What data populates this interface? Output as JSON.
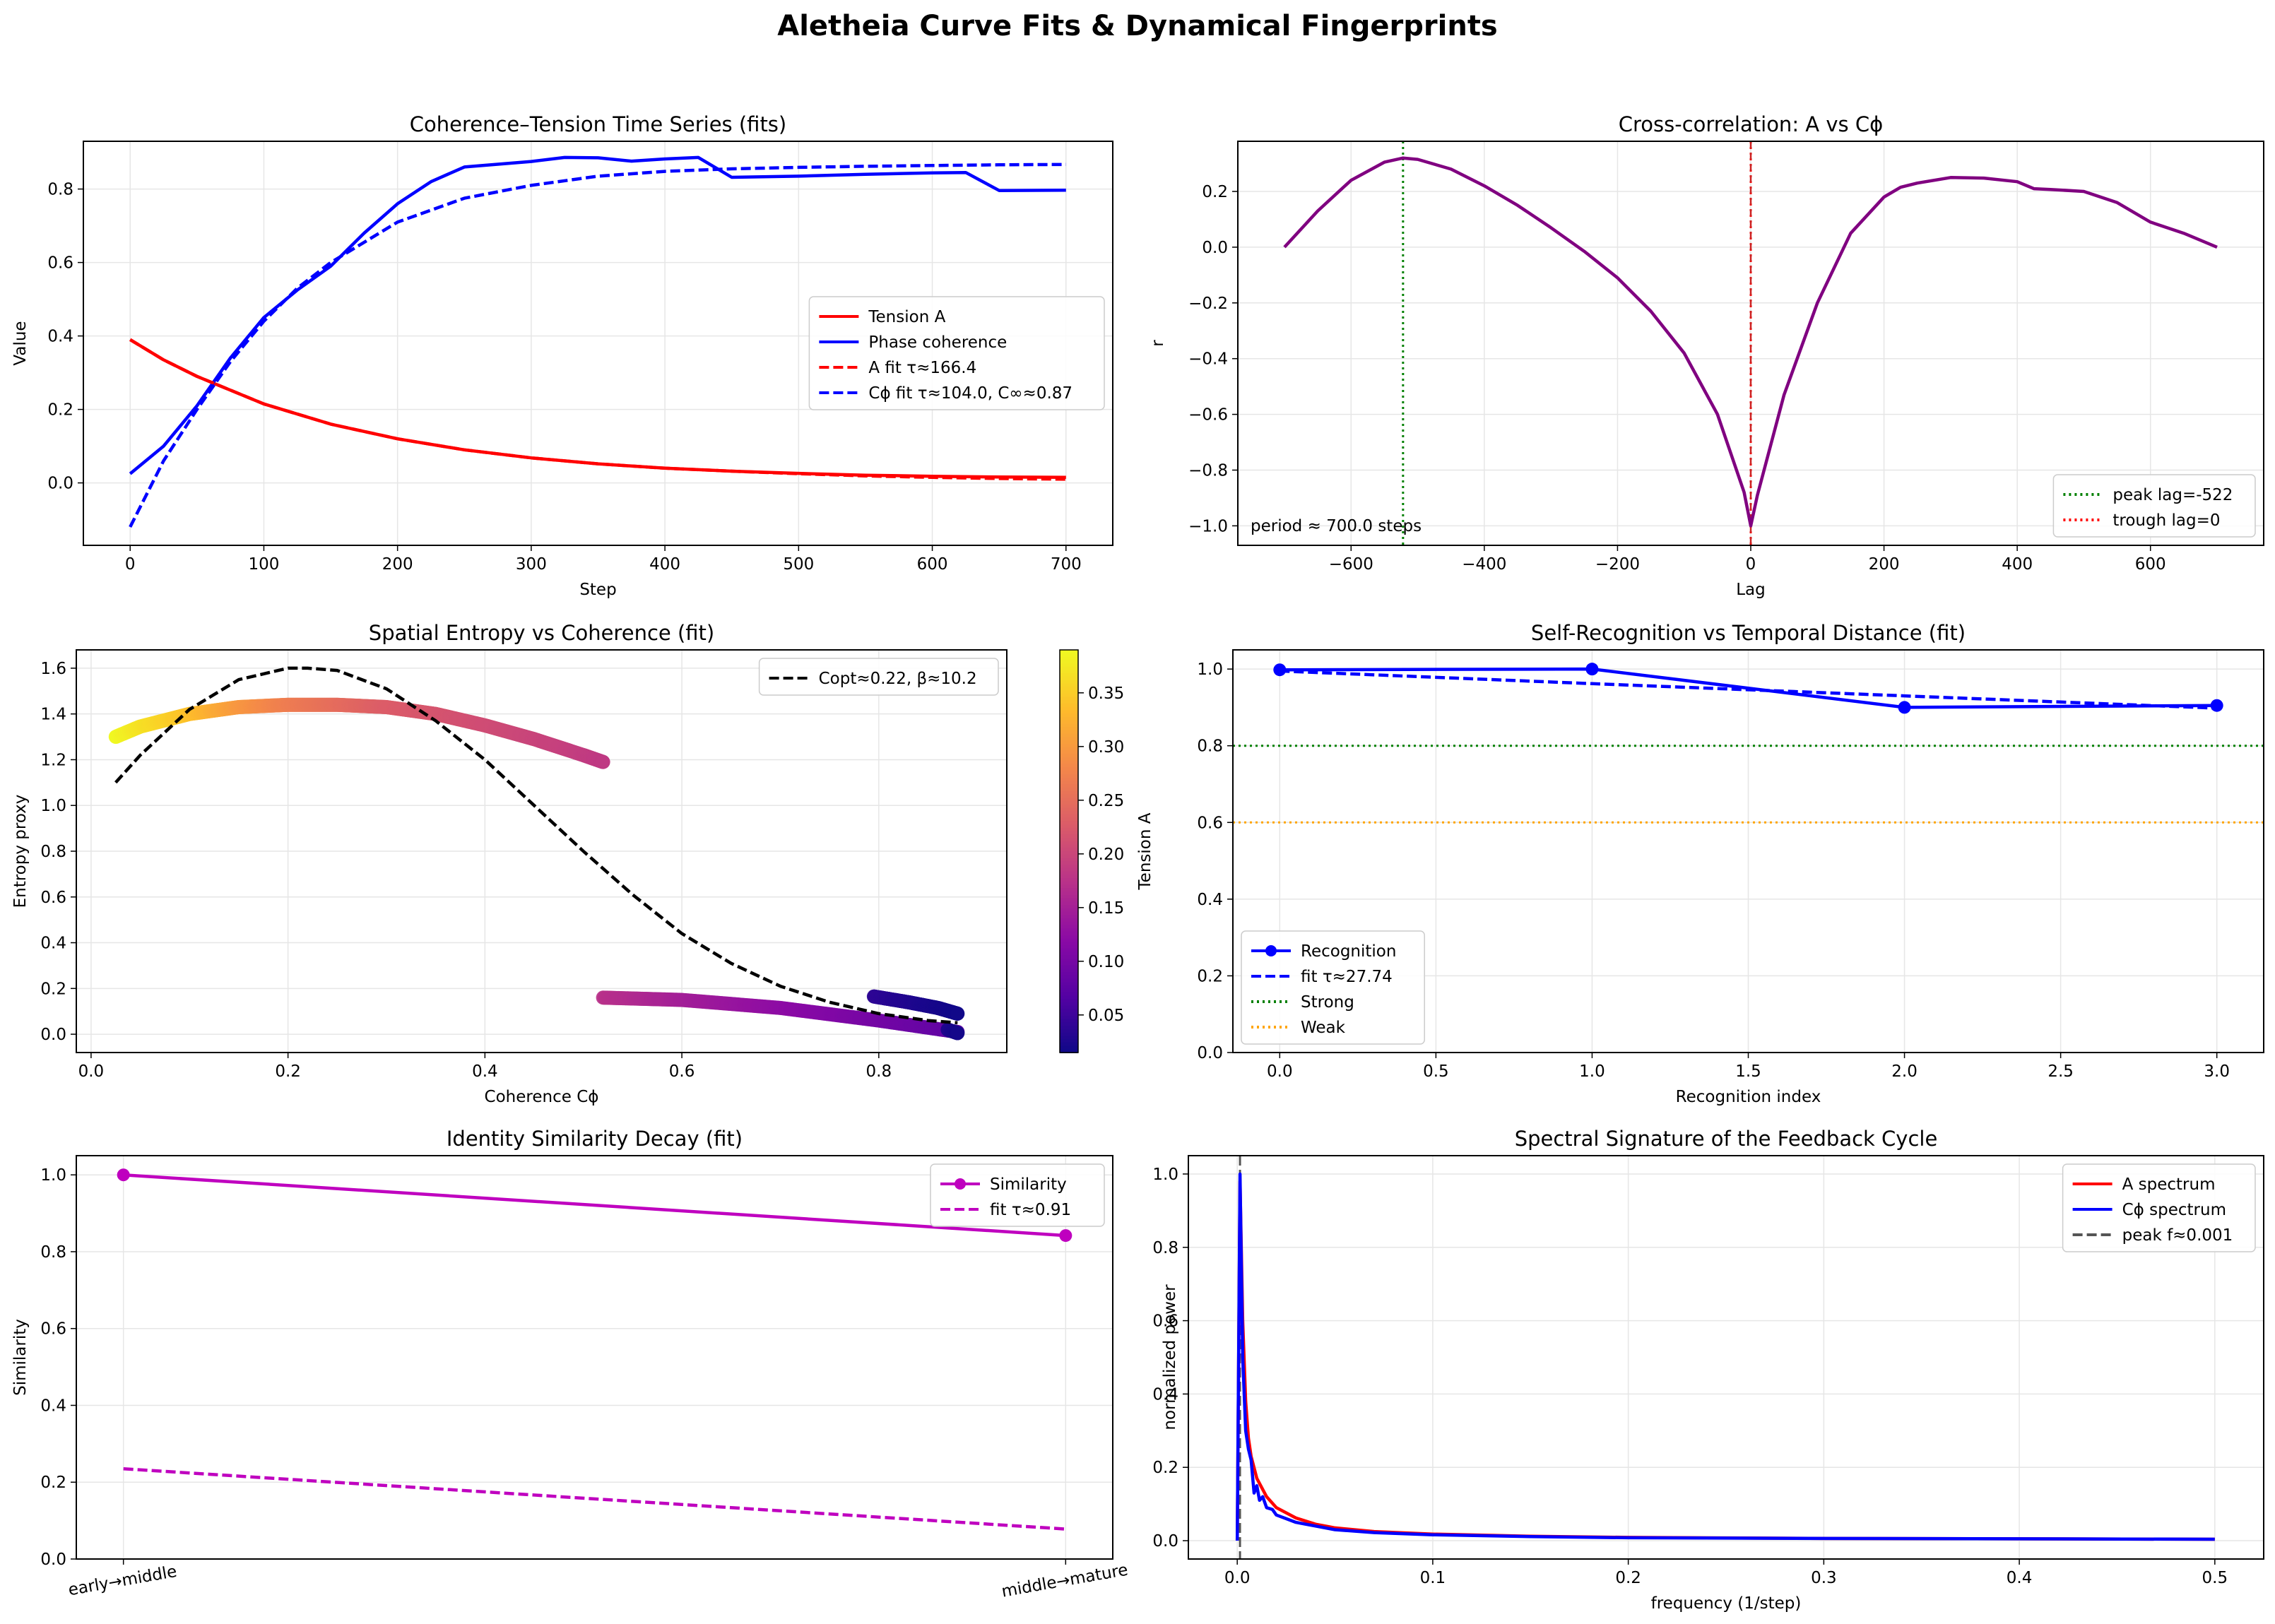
{
  "figure": {
    "title": "Aletheia Curve Fits & Dynamical Fingerprints"
  },
  "chart_data": [
    {
      "id": "ts",
      "type": "line",
      "title": "Coherence–Tension Time Series (fits)",
      "xlabel": "Step",
      "ylabel": "Value",
      "xlim": [
        -35,
        735
      ],
      "ylim": [
        -0.17,
        0.93
      ],
      "xticks": [
        0,
        100,
        200,
        300,
        400,
        500,
        600,
        700
      ],
      "yticks": [
        0.0,
        0.2,
        0.4,
        0.6,
        0.8
      ],
      "ytick_labels": [
        "0.0",
        "0.2",
        "0.4",
        "0.6",
        "0.8"
      ],
      "grid": true,
      "legend": "center-right",
      "series": [
        {
          "name": "Tension A",
          "color": "#ff0000",
          "style": "solid",
          "x": [
            0,
            25,
            50,
            100,
            150,
            200,
            250,
            300,
            350,
            400,
            450,
            500,
            550,
            600,
            650,
            700
          ],
          "y": [
            0.39,
            0.335,
            0.29,
            0.215,
            0.16,
            0.12,
            0.09,
            0.068,
            0.052,
            0.04,
            0.032,
            0.026,
            0.021,
            0.018,
            0.016,
            0.015
          ]
        },
        {
          "name": "Phase coherence",
          "color": "#0000ff",
          "style": "solid",
          "x": [
            0,
            25,
            50,
            75,
            100,
            125,
            150,
            175,
            200,
            225,
            250,
            300,
            325,
            350,
            375,
            400,
            425,
            450,
            500,
            550,
            600,
            625,
            650,
            700
          ],
          "y": [
            0.025,
            0.1,
            0.21,
            0.34,
            0.45,
            0.525,
            0.59,
            0.68,
            0.76,
            0.82,
            0.86,
            0.875,
            0.886,
            0.885,
            0.876,
            0.882,
            0.886,
            0.832,
            0.835,
            0.84,
            0.844,
            0.845,
            0.796,
            0.797
          ]
        },
        {
          "name": "A fit τ≈166.4",
          "color": "#ff0000",
          "style": "dashed",
          "x": [
            0,
            25,
            50,
            100,
            150,
            200,
            250,
            300,
            350,
            400,
            450,
            500,
            550,
            600,
            650,
            700
          ],
          "y": [
            0.39,
            0.335,
            0.29,
            0.215,
            0.16,
            0.12,
            0.09,
            0.068,
            0.052,
            0.04,
            0.032,
            0.025,
            0.019,
            0.015,
            0.012,
            0.01
          ]
        },
        {
          "name": "Cϕ fit τ≈104.0, C∞≈0.87",
          "color": "#0000ff",
          "style": "dashed",
          "x": [
            0,
            25,
            50,
            75,
            100,
            125,
            150,
            200,
            250,
            300,
            350,
            400,
            450,
            500,
            550,
            600,
            650,
            700
          ],
          "y": [
            -0.12,
            0.06,
            0.2,
            0.33,
            0.44,
            0.53,
            0.6,
            0.71,
            0.775,
            0.81,
            0.835,
            0.848,
            0.855,
            0.859,
            0.862,
            0.864,
            0.866,
            0.867
          ]
        }
      ]
    },
    {
      "id": "xcorr",
      "type": "line",
      "title": "Cross-correlation: A vs Cϕ",
      "xlabel": "Lag",
      "ylabel": "r",
      "xlim": [
        -770,
        770
      ],
      "ylim": [
        -1.07,
        0.38
      ],
      "xticks": [
        -600,
        -400,
        -200,
        0,
        200,
        400,
        600
      ],
      "xtick_labels": [
        "−600",
        "−400",
        "−200",
        "0",
        "200",
        "400",
        "600"
      ],
      "yticks": [
        -1.0,
        -0.8,
        -0.6,
        -0.4,
        -0.2,
        0.0,
        0.2
      ],
      "ytick_labels": [
        "−1.0",
        "−0.8",
        "−0.6",
        "−0.4",
        "−0.2",
        "0.0",
        "0.2"
      ],
      "grid": true,
      "legend": "lower-right",
      "annotation": "period ≈ 700.0 steps",
      "series": [
        {
          "name": "",
          "color": "#800080",
          "style": "solid",
          "x": [
            -700,
            -650,
            -600,
            -550,
            -522,
            -500,
            -450,
            -400,
            -350,
            -300,
            -250,
            -200,
            -150,
            -100,
            -50,
            -10,
            0,
            10,
            50,
            100,
            150,
            200,
            225,
            250,
            300,
            350,
            400,
            425,
            450,
            500,
            550,
            600,
            650,
            700
          ],
          "y": [
            0.0,
            0.13,
            0.24,
            0.305,
            0.32,
            0.315,
            0.28,
            0.22,
            0.15,
            0.07,
            -0.015,
            -0.11,
            -0.23,
            -0.38,
            -0.6,
            -0.88,
            -1.0,
            -0.89,
            -0.53,
            -0.2,
            0.05,
            0.18,
            0.215,
            0.23,
            0.25,
            0.248,
            0.235,
            0.21,
            0.207,
            0.2,
            0.16,
            0.09,
            0.05,
            0.0
          ]
        }
      ],
      "vlines": [
        {
          "name": "peak lag=-522",
          "x": -522,
          "color": "#008000",
          "style": "dotted"
        },
        {
          "name": "trough lag=0",
          "x": 0,
          "color": "#ff0000",
          "style": "dotted"
        }
      ],
      "trough_marker": {
        "x": 0,
        "color": "#cc2222",
        "style": "dashed"
      }
    },
    {
      "id": "entropy",
      "type": "scatter",
      "title": "Spatial Entropy vs Coherence (fit)",
      "xlabel": "Coherence Cϕ",
      "ylabel": "Entropy proxy",
      "xlim": [
        -0.015,
        0.93
      ],
      "ylim": [
        -0.08,
        1.68
      ],
      "xticks": [
        0.0,
        0.2,
        0.4,
        0.6,
        0.8
      ],
      "xtick_labels": [
        "0.0",
        "0.2",
        "0.4",
        "0.6",
        "0.8"
      ],
      "yticks": [
        0.0,
        0.2,
        0.4,
        0.6,
        0.8,
        1.0,
        1.2,
        1.4,
        1.6
      ],
      "ytick_labels": [
        "0.0",
        "0.2",
        "0.4",
        "0.6",
        "0.8",
        "1.0",
        "1.2",
        "1.4",
        "1.6"
      ],
      "grid": true,
      "legend": "top-right",
      "colorbar": {
        "label": "Tension A",
        "min": 0.015,
        "max": 0.39,
        "ticks": [
          0.05,
          0.1,
          0.15,
          0.2,
          0.25,
          0.3,
          0.35
        ],
        "tick_labels": [
          "0.05",
          "0.10",
          "0.15",
          "0.20",
          "0.25",
          "0.30",
          "0.35"
        ]
      },
      "scatter_segments": [
        {
          "x": [
            0.025,
            0.05,
            0.1,
            0.15,
            0.2,
            0.25,
            0.3,
            0.35,
            0.4,
            0.45,
            0.5,
            0.52
          ],
          "y": [
            1.3,
            1.345,
            1.4,
            1.43,
            1.44,
            1.44,
            1.43,
            1.4,
            1.35,
            1.29,
            1.22,
            1.19
          ],
          "a": [
            0.39,
            0.37,
            0.34,
            0.3,
            0.27,
            0.25,
            0.23,
            0.22,
            0.21,
            0.2,
            0.19,
            0.185
          ]
        },
        {
          "x": [
            0.52,
            0.6,
            0.7,
            0.8,
            0.88
          ],
          "y": [
            0.16,
            0.15,
            0.115,
            0.06,
            0.01
          ],
          "a": [
            0.175,
            0.15,
            0.125,
            0.1,
            0.08
          ]
        },
        {
          "x": [
            0.795,
            0.83,
            0.86,
            0.88
          ],
          "y": [
            0.165,
            0.14,
            0.115,
            0.09
          ],
          "a": [
            0.04,
            0.03,
            0.022,
            0.018
          ]
        },
        {
          "x": [
            0.87,
            0.88
          ],
          "y": [
            0.02,
            0.005
          ],
          "a": [
            0.03,
            0.02
          ]
        }
      ],
      "series": [
        {
          "name": "Copt≈0.22, β≈10.2",
          "color": "#000000",
          "style": "dashed",
          "x": [
            0.025,
            0.05,
            0.1,
            0.15,
            0.2,
            0.22,
            0.25,
            0.3,
            0.35,
            0.4,
            0.45,
            0.5,
            0.55,
            0.6,
            0.65,
            0.7,
            0.75,
            0.8,
            0.85,
            0.88
          ],
          "y": [
            1.1,
            1.22,
            1.42,
            1.55,
            1.6,
            1.6,
            1.59,
            1.51,
            1.37,
            1.2,
            1.0,
            0.8,
            0.61,
            0.44,
            0.31,
            0.21,
            0.14,
            0.09,
            0.06,
            0.05
          ]
        }
      ]
    },
    {
      "id": "selfrec",
      "type": "line",
      "title": "Self-Recognition vs Temporal Distance (fit)",
      "xlabel": "Recognition index",
      "ylabel": "",
      "xlim": [
        -0.15,
        3.15
      ],
      "ylim": [
        0.0,
        1.05
      ],
      "xticks": [
        0.0,
        0.5,
        1.0,
        1.5,
        2.0,
        2.5,
        3.0
      ],
      "xtick_labels": [
        "0.0",
        "0.5",
        "1.0",
        "1.5",
        "2.0",
        "2.5",
        "3.0"
      ],
      "yticks": [
        0.0,
        0.2,
        0.4,
        0.6,
        0.8,
        1.0
      ],
      "ytick_labels": [
        "0.0",
        "0.2",
        "0.4",
        "0.6",
        "0.8",
        "1.0"
      ],
      "grid": true,
      "legend": "lower-left",
      "series": [
        {
          "name": "Recognition",
          "color": "#0000ff",
          "style": "solid",
          "markers": true,
          "x": [
            0,
            1,
            2,
            3
          ],
          "y": [
            0.998,
            1.0,
            0.9,
            0.905
          ]
        },
        {
          "name": "fit τ≈27.74",
          "color": "#0000ff",
          "style": "dashed",
          "x": [
            0,
            1,
            2,
            3
          ],
          "y": [
            0.995,
            0.962,
            0.93,
            0.898
          ]
        }
      ],
      "hlines": [
        {
          "name": "Strong",
          "y": 0.8,
          "color": "#008000",
          "style": "dotted"
        },
        {
          "name": "Weak",
          "y": 0.6,
          "color": "#ffa500",
          "style": "dotted"
        }
      ]
    },
    {
      "id": "identity",
      "type": "line",
      "title": "Identity Similarity Decay (fit)",
      "xlabel": "",
      "ylabel": "Similarity",
      "xlim": [
        -0.05,
        1.05
      ],
      "ylim": [
        0.0,
        1.05
      ],
      "categories": [
        "early→middle",
        "middle→mature"
      ],
      "yticks": [
        0.0,
        0.2,
        0.4,
        0.6,
        0.8,
        1.0
      ],
      "ytick_labels": [
        "0.0",
        "0.2",
        "0.4",
        "0.6",
        "0.8",
        "1.0"
      ],
      "grid": true,
      "legend": "top-right",
      "series": [
        {
          "name": "Similarity",
          "color": "#bf00bf",
          "style": "solid",
          "markers": true,
          "x": [
            0,
            1
          ],
          "y": [
            1.0,
            0.842
          ]
        },
        {
          "name": "fit τ≈0.91",
          "color": "#bf00bf",
          "style": "dashed",
          "x": [
            0,
            1
          ],
          "y": [
            0.235,
            0.078
          ]
        }
      ]
    },
    {
      "id": "spectrum",
      "type": "line",
      "title": "Spectral Signature of the Feedback Cycle",
      "xlabel": "frequency (1/step)",
      "ylabel": "normalized power",
      "xlim": [
        -0.025,
        0.525
      ],
      "ylim": [
        -0.05,
        1.05
      ],
      "xticks": [
        0.0,
        0.1,
        0.2,
        0.3,
        0.4,
        0.5
      ],
      "xtick_labels": [
        "0.0",
        "0.1",
        "0.2",
        "0.3",
        "0.4",
        "0.5"
      ],
      "yticks": [
        0.0,
        0.2,
        0.4,
        0.6,
        0.8,
        1.0
      ],
      "ytick_labels": [
        "0.0",
        "0.2",
        "0.4",
        "0.6",
        "0.8",
        "1.0"
      ],
      "grid": true,
      "legend": "top-right",
      "series": [
        {
          "name": "A spectrum",
          "color": "#ff0000",
          "style": "solid",
          "x": [
            0.0,
            0.0014,
            0.0028,
            0.0043,
            0.0057,
            0.0071,
            0.01,
            0.015,
            0.02,
            0.03,
            0.04,
            0.05,
            0.07,
            0.1,
            0.15,
            0.2,
            0.3,
            0.4,
            0.5
          ],
          "y": [
            0.0,
            0.98,
            0.6,
            0.38,
            0.28,
            0.23,
            0.17,
            0.12,
            0.09,
            0.062,
            0.045,
            0.035,
            0.025,
            0.018,
            0.012,
            0.009,
            0.006,
            0.005,
            0.004
          ]
        },
        {
          "name": "Cϕ spectrum",
          "color": "#0000ff",
          "style": "solid",
          "x": [
            0.0,
            0.0014,
            0.0028,
            0.0043,
            0.0057,
            0.0071,
            0.0086,
            0.01,
            0.0114,
            0.013,
            0.015,
            0.018,
            0.02,
            0.025,
            0.03,
            0.04,
            0.05,
            0.07,
            0.1,
            0.15,
            0.2,
            0.3,
            0.4,
            0.5
          ],
          "y": [
            0.0,
            1.0,
            0.5,
            0.3,
            0.25,
            0.22,
            0.13,
            0.15,
            0.11,
            0.12,
            0.09,
            0.085,
            0.07,
            0.06,
            0.05,
            0.04,
            0.03,
            0.022,
            0.016,
            0.011,
            0.008,
            0.006,
            0.005,
            0.004
          ]
        }
      ],
      "vlines": [
        {
          "name": "peak f≈0.001",
          "x": 0.0014,
          "color": "#555555",
          "style": "dashed"
        }
      ]
    }
  ]
}
